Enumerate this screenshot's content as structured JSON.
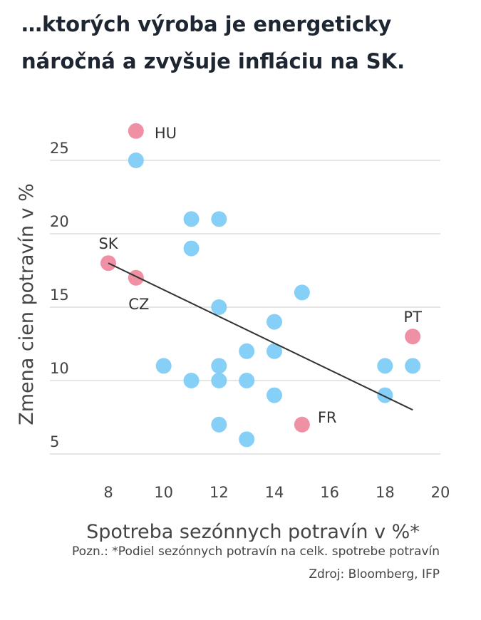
{
  "title": "…ktorých výroba je energeticky náročná a zvyšuje infláciu na SK.",
  "note": "Pozn.: *Podiel sezónnych potravín na celk. spotrebe potravín",
  "source": "Zdroj: Bloomberg, IFP",
  "colors": {
    "default": "#7fccf5",
    "highlight": "#ef8aa0",
    "grid": "#dddddd",
    "trend": "#333333"
  },
  "chart_data": {
    "type": "scatter",
    "xlabel": "Spotreba sezónnych potravín v %*",
    "ylabel": "Zmena cien potravín v %",
    "xlim": [
      7.5,
      20.5
    ],
    "ylim": [
      4.5,
      27
    ],
    "xticks": [
      8,
      10,
      12,
      14,
      16,
      18,
      20
    ],
    "yticks": [
      5,
      10,
      15,
      20,
      25
    ],
    "grid": "horizontal",
    "points": [
      {
        "x": 9,
        "y": 27,
        "label": "HU",
        "highlight": true
      },
      {
        "x": 8,
        "y": 18,
        "label": "SK",
        "highlight": true
      },
      {
        "x": 9,
        "y": 17,
        "label": "CZ",
        "highlight": true
      },
      {
        "x": 19,
        "y": 13,
        "label": "PT",
        "highlight": true
      },
      {
        "x": 15,
        "y": 7,
        "label": "FR",
        "highlight": true
      },
      {
        "x": 9,
        "y": 25
      },
      {
        "x": 11,
        "y": 21
      },
      {
        "x": 12,
        "y": 21
      },
      {
        "x": 11,
        "y": 19
      },
      {
        "x": 15,
        "y": 16
      },
      {
        "x": 12,
        "y": 15
      },
      {
        "x": 14,
        "y": 14
      },
      {
        "x": 13,
        "y": 12
      },
      {
        "x": 14,
        "y": 12
      },
      {
        "x": 10,
        "y": 11
      },
      {
        "x": 12,
        "y": 11
      },
      {
        "x": 18,
        "y": 11
      },
      {
        "x": 19,
        "y": 11
      },
      {
        "x": 11,
        "y": 10
      },
      {
        "x": 12,
        "y": 10
      },
      {
        "x": 13,
        "y": 10
      },
      {
        "x": 14,
        "y": 9
      },
      {
        "x": 18,
        "y": 9
      },
      {
        "x": 12,
        "y": 7
      },
      {
        "x": 13,
        "y": 6
      }
    ],
    "trendline": {
      "x": [
        8,
        19
      ],
      "y": [
        18,
        8
      ]
    }
  }
}
